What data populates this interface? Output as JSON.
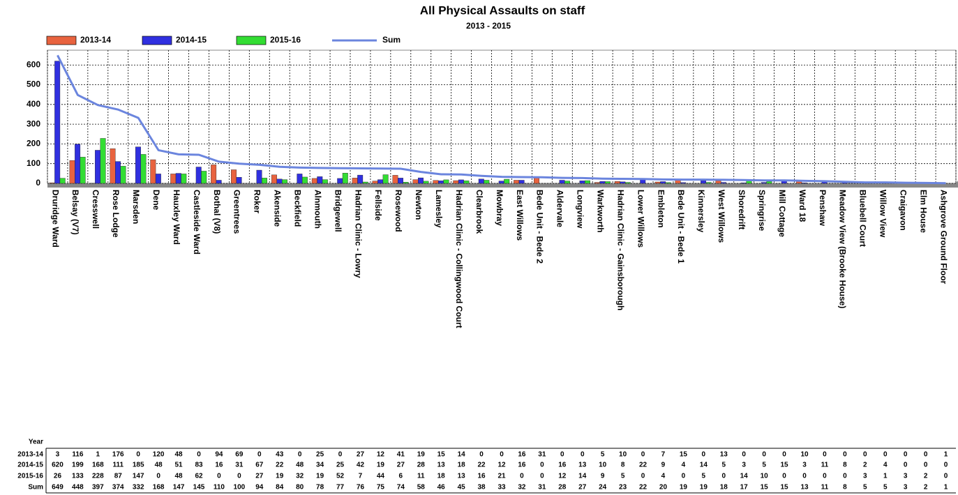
{
  "chart_data": {
    "type": "bar",
    "title": "All Physical Assaults on staff",
    "subtitle": "2013 - 2015",
    "categories": [
      "Druridge Ward",
      "Belsay (V7)",
      "Cresswell",
      "Rose Lodge",
      "Marsden",
      "Dene",
      "Hauxley Ward",
      "Castleside Ward",
      "Bothal (V8)",
      "Greentrees",
      "Roker",
      "Akenside",
      "Beckfield",
      "Alnmouth",
      "Bridgewell",
      "Hadrian Clinic - Lowry",
      "Fellside",
      "Rosewood",
      "Newton",
      "Lamesley",
      "Hadrian Clinic - Collingwood Court",
      "Clearbrook",
      "Mowbray",
      "East Willows",
      "Bede Unit - Bede 2",
      "Aldervale",
      "Longview",
      "Warkworth",
      "Hadrian Clinic - Gainsborough",
      "Lower Willows",
      "Embleton",
      "Bede Unit - Bede 1",
      "Kinnersley",
      "West Willows",
      "Shoredrift",
      "Springrise",
      "Mill Cottage",
      "Ward 18",
      "Penshaw",
      "Meadow View (Brooke House)",
      "Bluebell Court",
      "Willow View",
      "Craigavon",
      "Elm House",
      "Ashgrove Ground Floor"
    ],
    "series": [
      {
        "name": "2013-14",
        "color": "#e8633f",
        "type": "bar",
        "values": [
          3,
          116,
          1,
          176,
          0,
          120,
          48,
          0,
          94,
          69,
          0,
          43,
          0,
          25,
          0,
          27,
          12,
          41,
          19,
          15,
          14,
          0,
          0,
          16,
          31,
          0,
          0,
          5,
          10,
          0,
          7,
          15,
          0,
          13,
          0,
          0,
          0,
          10,
          0,
          0,
          0,
          0,
          0,
          0,
          1
        ]
      },
      {
        "name": "2014-15",
        "color": "#3030e0",
        "type": "bar",
        "values": [
          620,
          199,
          168,
          111,
          185,
          48,
          51,
          83,
          16,
          31,
          67,
          22,
          48,
          34,
          25,
          42,
          19,
          27,
          28,
          13,
          18,
          22,
          12,
          16,
          0,
          16,
          13,
          10,
          8,
          22,
          9,
          4,
          14,
          5,
          3,
          5,
          15,
          3,
          11,
          8,
          2,
          4,
          0,
          0,
          0
        ]
      },
      {
        "name": "2015-16",
        "color": "#33dd33",
        "type": "bar",
        "values": [
          26,
          133,
          228,
          87,
          147,
          0,
          48,
          62,
          0,
          0,
          27,
          19,
          32,
          19,
          52,
          7,
          44,
          6,
          11,
          18,
          13,
          16,
          21,
          0,
          0,
          12,
          14,
          9,
          5,
          0,
          4,
          0,
          5,
          0,
          14,
          10,
          0,
          0,
          0,
          0,
          3,
          1,
          3,
          2,
          0
        ]
      },
      {
        "name": "Sum",
        "color": "#6b85de",
        "type": "line",
        "values": [
          649,
          448,
          397,
          374,
          332,
          168,
          147,
          145,
          110,
          100,
          94,
          84,
          80,
          78,
          77,
          76,
          75,
          74,
          58,
          46,
          45,
          38,
          33,
          32,
          31,
          28,
          27,
          24,
          23,
          22,
          20,
          19,
          19,
          18,
          17,
          15,
          15,
          13,
          11,
          8,
          5,
          5,
          3,
          2,
          1
        ]
      }
    ],
    "table_header": "Year",
    "ylim": [
      0,
      675
    ],
    "yticks": [
      0,
      100,
      200,
      300,
      400,
      500,
      600
    ],
    "grid": true
  }
}
